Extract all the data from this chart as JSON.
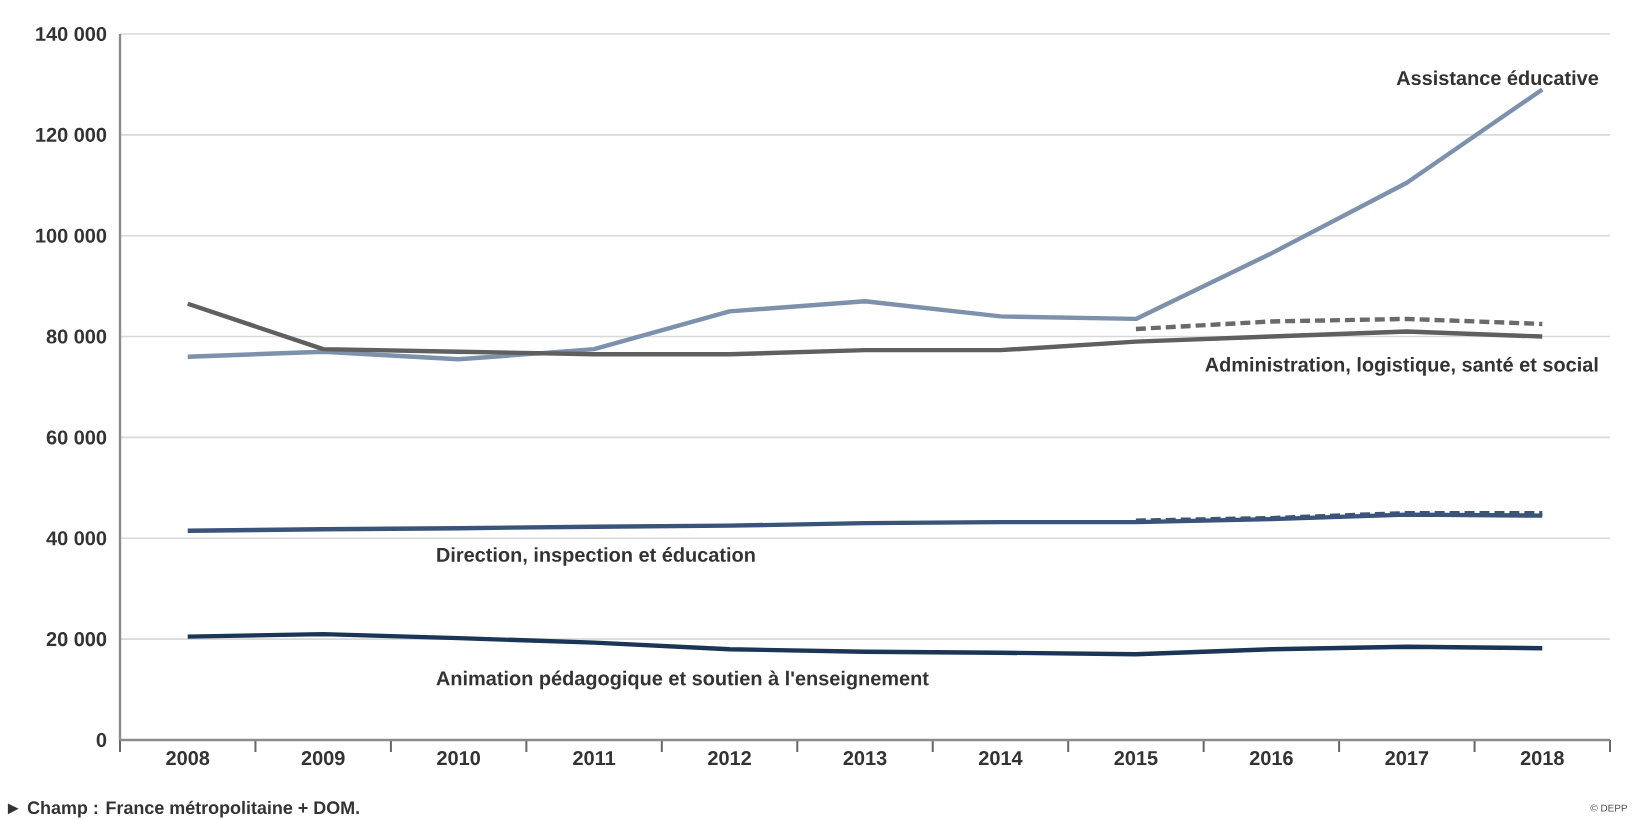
{
  "chart_data": {
    "type": "line",
    "categories": [
      "2008",
      "2009",
      "2010",
      "2011",
      "2012",
      "2013",
      "2014",
      "2015",
      "2016",
      "2017",
      "2018"
    ],
    "series": [
      {
        "name": "Assistance éducative",
        "color": "#7d91ad",
        "values": [
          76000,
          77000,
          75500,
          77500,
          85000,
          87000,
          84000,
          83500,
          96500,
          110500,
          129000
        ]
      },
      {
        "name": "Administration, logistique, santé et social",
        "color": "#5f5f5f",
        "values": [
          86500,
          77500,
          77000,
          76500,
          76500,
          77300,
          77300,
          79000,
          80000,
          81000,
          80000
        ]
      },
      {
        "name": "Direction, inspection et éducation",
        "color": "#3a5378",
        "values": [
          41500,
          41800,
          42000,
          42300,
          42500,
          43000,
          43200,
          43200,
          43800,
          44700,
          44500
        ]
      },
      {
        "name": "Animation pédagogique et soutien à l'enseignement",
        "color": "#1b3557",
        "values": [
          20500,
          21000,
          20200,
          19300,
          18000,
          17500,
          17300,
          17000,
          18000,
          18500,
          18200
        ]
      },
      {
        "color": "#6a6a6a",
        "line_style": "dashed",
        "values": [
          null,
          null,
          null,
          null,
          null,
          null,
          null,
          81500,
          83000,
          83500,
          82500
        ]
      },
      {
        "color": "#3a5378",
        "line_style": "dashed",
        "values": [
          null,
          null,
          null,
          null,
          null,
          null,
          null,
          43500,
          44000,
          45000,
          45000
        ]
      }
    ],
    "ylim": [
      0,
      140000
    ],
    "yticks": [
      0,
      {
        "value": 20000,
        "label": "20 000"
      },
      {
        "value": 40000,
        "label": "40 000"
      },
      {
        "value": 60000,
        "label": "60 000"
      },
      {
        "value": 80000,
        "label": "80 000"
      },
      {
        "value": 100000,
        "label": "100 000"
      },
      {
        "value": 120000,
        "label": "120 000"
      },
      {
        "value": 140000,
        "label": "140 000"
      }
    ],
    "grid": "y",
    "line_style": "solid",
    "marker": "none",
    "annotations": [
      "► Champ : France métropolitaine + DOM.",
      "© DEPP"
    ]
  }
}
